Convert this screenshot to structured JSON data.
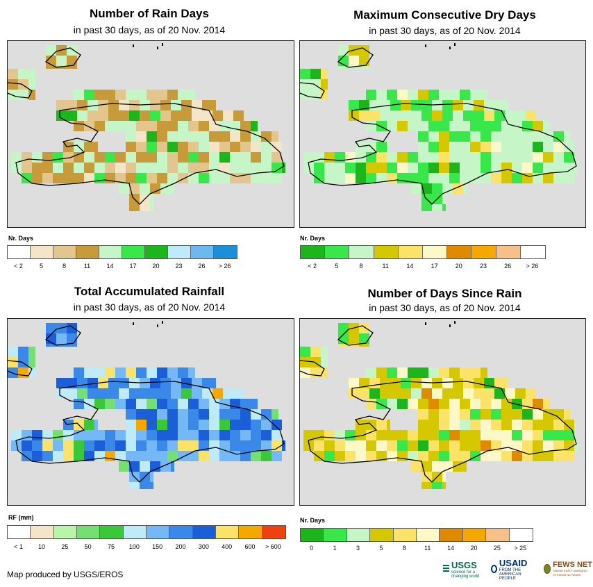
{
  "panels": [
    {
      "id": "rain_days",
      "title": "Number of Rain Days",
      "subtitle": "in past 30 days, as of 20 Nov. 2014",
      "legend_title": "Nr. Days",
      "legend_colors": [
        "#ffffff",
        "#f5e5c8",
        "#e2c68d",
        "#c89b3a",
        "#c6f5c8",
        "#38e84a",
        "#1cb51c",
        "#bfeaf7",
        "#6cb8ef",
        "#1b90d8"
      ],
      "legend_ticks": [
        "< 2",
        "5",
        "8",
        "11",
        "14",
        "17",
        "20",
        "23",
        "26",
        "> 26"
      ],
      "cell_palette": [
        "#c89b3a",
        "#e2c68d",
        "#f5e5c8",
        "#c6f5c8",
        "#38e84a",
        "#1cb51c"
      ],
      "cell_weights": [
        5,
        3,
        1,
        4,
        1,
        0.4
      ]
    },
    {
      "id": "max_dry_days",
      "title": "Maximum Consecutive Dry Days",
      "subtitle": "in past 30 days, as of 20 Nov. 2014",
      "legend_title": "Nr. Days",
      "legend_colors": [
        "#1cb51c",
        "#38e84a",
        "#c6f5c8",
        "#d6c800",
        "#fbe36a",
        "#fcf8c8",
        "#e08a00",
        "#f5a800",
        "#f7c08a",
        "#ffffff"
      ],
      "legend_ticks": [
        "< 2",
        "5",
        "8",
        "11",
        "14",
        "17",
        "20",
        "23",
        "26",
        "> 26"
      ],
      "cell_palette": [
        "#c6f5c8",
        "#38e84a",
        "#d6c800",
        "#fbe36a",
        "#fcf8c8",
        "#1cb51c"
      ],
      "cell_weights": [
        6,
        3,
        2,
        1,
        0.6,
        0.3
      ]
    },
    {
      "id": "total_rainfall",
      "title": "Total Accumulated Rainfall",
      "subtitle": "in past 30 days, as of 20 Nov. 2014",
      "legend_title": "RF (mm)",
      "legend_colors": [
        "#ffffff",
        "#f5e5c8",
        "#b8f5a8",
        "#74e074",
        "#3ac83a",
        "#bfeaf7",
        "#74b8f5",
        "#3a88e8",
        "#1a5ed8",
        "#fbe36a",
        "#f5a800",
        "#f04010"
      ],
      "legend_ticks": [
        "< 1",
        "10",
        "25",
        "50",
        "75",
        "100",
        "150",
        "200",
        "300",
        "400",
        "600",
        "> 600"
      ],
      "cell_palette": [
        "#74b8f5",
        "#3a88e8",
        "#1a5ed8",
        "#bfeaf7",
        "#fbe36a",
        "#74e074",
        "#f5a800",
        "#3ac83a"
      ],
      "cell_weights": [
        4,
        4,
        3,
        2,
        1.2,
        1,
        0.5,
        0.5
      ]
    },
    {
      "id": "days_since_rain",
      "title": "Number of Days Since Rain",
      "subtitle": "in past 30 days, as of 20 Nov. 2014",
      "legend_title": "Nr. Days",
      "legend_colors": [
        "#1cb51c",
        "#38e84a",
        "#c6f5c8",
        "#d6c800",
        "#fbe36a",
        "#fcf8c8",
        "#e08a00",
        "#f5a800",
        "#f7c08a",
        "#ffffff"
      ],
      "legend_ticks": [
        "0",
        "1",
        "3",
        "5",
        "8",
        "11",
        "14",
        "20",
        "25",
        "> 25"
      ],
      "cell_palette": [
        "#d6c800",
        "#fbe36a",
        "#fcf8c8",
        "#38e84a",
        "#1cb51c",
        "#e08a00",
        "#c6f5c8"
      ],
      "cell_weights": [
        5,
        4,
        2,
        1,
        0.5,
        0.4,
        0.4
      ]
    }
  ],
  "footer": {
    "credit": "Map produced by USGS/EROS",
    "usgs": "USGS",
    "usgs_tagline": "science for a changing world",
    "usaid": "USAID",
    "usaid_tagline": "FROM THE AMERICAN PEOPLE",
    "fewsnet": "FEWS NET",
    "fewsnet_tagline": "FAMINE EARLY WARNING SYSTEMS NETWORK"
  },
  "colors": {
    "map_background": "#dedede",
    "outline": "#000000"
  }
}
